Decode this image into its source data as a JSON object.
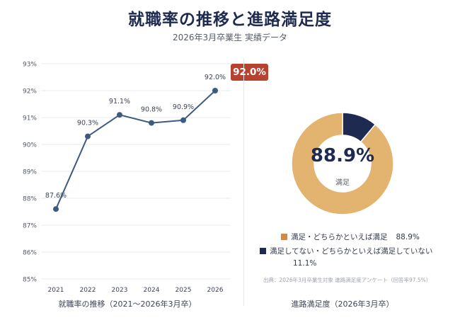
{
  "header": {
    "title": "就職率の推移と進路満足度",
    "subtitle": "2026年3月卒業生 実績データ"
  },
  "chart_data": [
    {
      "type": "line",
      "x": [
        "2021",
        "2022",
        "2023",
        "2024",
        "2025",
        "2026"
      ],
      "values": [
        87.6,
        90.3,
        91.1,
        90.8,
        90.9,
        92.0
      ],
      "data_labels": [
        "87.6%",
        "90.3%",
        "91.1%",
        "90.8%",
        "90.9%",
        "92.0%"
      ],
      "y_ticks": [
        "85%",
        "86%",
        "87%",
        "88%",
        "89%",
        "90%",
        "91%",
        "92%",
        "93%"
      ],
      "ylim": [
        85,
        93
      ],
      "grid": true,
      "color": "#3d5a80",
      "highlight_badge": "92.0%",
      "caption": "就職率の推移（2021〜2026年3月卒）"
    },
    {
      "type": "pie",
      "donut": true,
      "slices": [
        {
          "name": "満足・どちらかといえば満足",
          "value": 88.9,
          "label": "88.9%",
          "color": "#e3b470"
        },
        {
          "name": "満足してない・どちらかといえば満足していない",
          "value": 11.1,
          "label": "11.1%",
          "color": "#1e2a4f"
        }
      ],
      "center_value": "88.9%",
      "center_label": "満足",
      "legend_swatch_color": "#d28a45",
      "source_note": "出典：2026年3月卒業生対象 進路満足度アンケート（回答率97.5%）",
      "caption": "進路満足度（2026年3月卒）"
    }
  ]
}
